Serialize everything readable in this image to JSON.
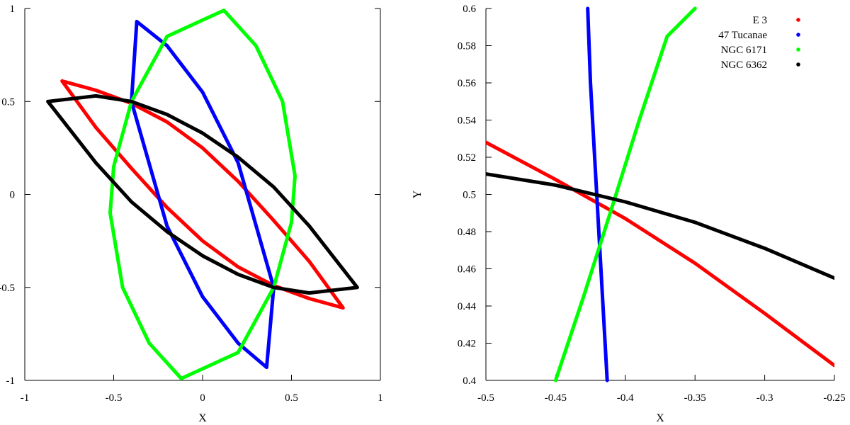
{
  "chart_data": [
    {
      "type": "line",
      "xlabel": "X",
      "ylabel": "",
      "xlim": [
        -1,
        1
      ],
      "ylim": [
        -1,
        1
      ],
      "xticks": [
        -1,
        -0.5,
        0,
        0.5,
        1
      ],
      "xtick_labels": [
        "-1",
        "-0.5",
        "0",
        "0.5",
        "1"
      ],
      "yticks": [
        -1,
        -0.5,
        0,
        0.5,
        1
      ],
      "ytick_labels": [
        "-1",
        "-0.5",
        "0",
        "0.5",
        "1"
      ],
      "grid": false,
      "series": [
        {
          "color": "#ff0000",
          "x": [
            -0.79,
            -0.6,
            -0.4,
            -0.2,
            0,
            0.2,
            0.4,
            0.6,
            0.79,
            0.6,
            0.4,
            0.2,
            0,
            -0.2,
            -0.4,
            -0.6,
            -0.79
          ],
          "y": [
            0.61,
            0.56,
            0.49,
            0.39,
            0.25,
            0.07,
            -0.14,
            -0.36,
            -0.61,
            -0.56,
            -0.49,
            -0.39,
            -0.25,
            -0.07,
            0.14,
            0.36,
            0.61
          ]
        },
        {
          "color": "#0000ff",
          "x": [
            -0.37,
            -0.2,
            0,
            0.2,
            0.4,
            0.36,
            0.2,
            0,
            -0.2,
            -0.4,
            -0.37
          ],
          "y": [
            0.93,
            0.8,
            0.55,
            0.17,
            -0.5,
            -0.93,
            -0.8,
            -0.55,
            -0.17,
            0.5,
            0.93
          ]
        },
        {
          "color": "#00ff00",
          "x": [
            0.12,
            0.3,
            0.45,
            0.52,
            0.5,
            0.4,
            0.2,
            -0.12,
            -0.3,
            -0.45,
            -0.52,
            -0.5,
            -0.4,
            -0.2,
            0.12
          ],
          "y": [
            0.99,
            0.8,
            0.5,
            0.1,
            -0.15,
            -0.5,
            -0.85,
            -0.99,
            -0.8,
            -0.5,
            -0.1,
            0.15,
            0.5,
            0.85,
            0.99
          ]
        },
        {
          "color": "#000000",
          "x": [
            -0.87,
            -0.6,
            -0.4,
            -0.2,
            0,
            0.2,
            0.4,
            0.6,
            0.87,
            0.6,
            0.4,
            0.2,
            0,
            -0.2,
            -0.4,
            -0.6,
            -0.87
          ],
          "y": [
            0.5,
            0.53,
            0.5,
            0.43,
            0.33,
            0.2,
            0.04,
            -0.17,
            -0.5,
            -0.53,
            -0.5,
            -0.43,
            -0.33,
            -0.2,
            -0.04,
            0.17,
            0.5
          ]
        }
      ]
    },
    {
      "type": "line",
      "xlabel": "X",
      "ylabel": "Y",
      "xlim": [
        -0.5,
        -0.25
      ],
      "ylim": [
        0.4,
        0.6
      ],
      "xticks": [
        -0.5,
        -0.45,
        -0.4,
        -0.35,
        -0.3,
        -0.25
      ],
      "xtick_labels": [
        "-0.5",
        "-0.45",
        "-0.4",
        "-0.35",
        "-0.3",
        "-0.25"
      ],
      "yticks": [
        0.4,
        0.42,
        0.44,
        0.46,
        0.48,
        0.5,
        0.52,
        0.54,
        0.56,
        0.58,
        0.6
      ],
      "ytick_labels": [
        "0.4",
        "0.42",
        "0.44",
        "0.46",
        "0.48",
        "0.5",
        "0.52",
        "0.54",
        "0.56",
        "0.58",
        "0.6"
      ],
      "grid": false,
      "legend_position": "top-right",
      "series": [
        {
          "name": "E 3",
          "color": "#ff0000",
          "x": [
            -0.5,
            -0.45,
            -0.4,
            -0.35,
            -0.3,
            -0.25
          ],
          "y": [
            0.528,
            0.508,
            0.487,
            0.463,
            0.436,
            0.408
          ]
        },
        {
          "name": "47 Tucanae",
          "color": "#0000ff",
          "x": [
            -0.427,
            -0.425,
            -0.422,
            -0.419,
            -0.416,
            -0.413
          ],
          "y": [
            0.6,
            0.56,
            0.52,
            0.48,
            0.44,
            0.4
          ]
        },
        {
          "name": "NGC 6171",
          "color": "#00ff00",
          "x": [
            -0.45,
            -0.43,
            -0.41,
            -0.39,
            -0.37,
            -0.35
          ],
          "y": [
            0.4,
            0.445,
            0.492,
            0.54,
            0.585,
            0.6
          ]
        },
        {
          "name": "NGC 6362",
          "color": "#000000",
          "x": [
            -0.5,
            -0.45,
            -0.4,
            -0.35,
            -0.3,
            -0.25
          ],
          "y": [
            0.511,
            0.505,
            0.496,
            0.485,
            0.471,
            0.455
          ]
        }
      ]
    }
  ]
}
